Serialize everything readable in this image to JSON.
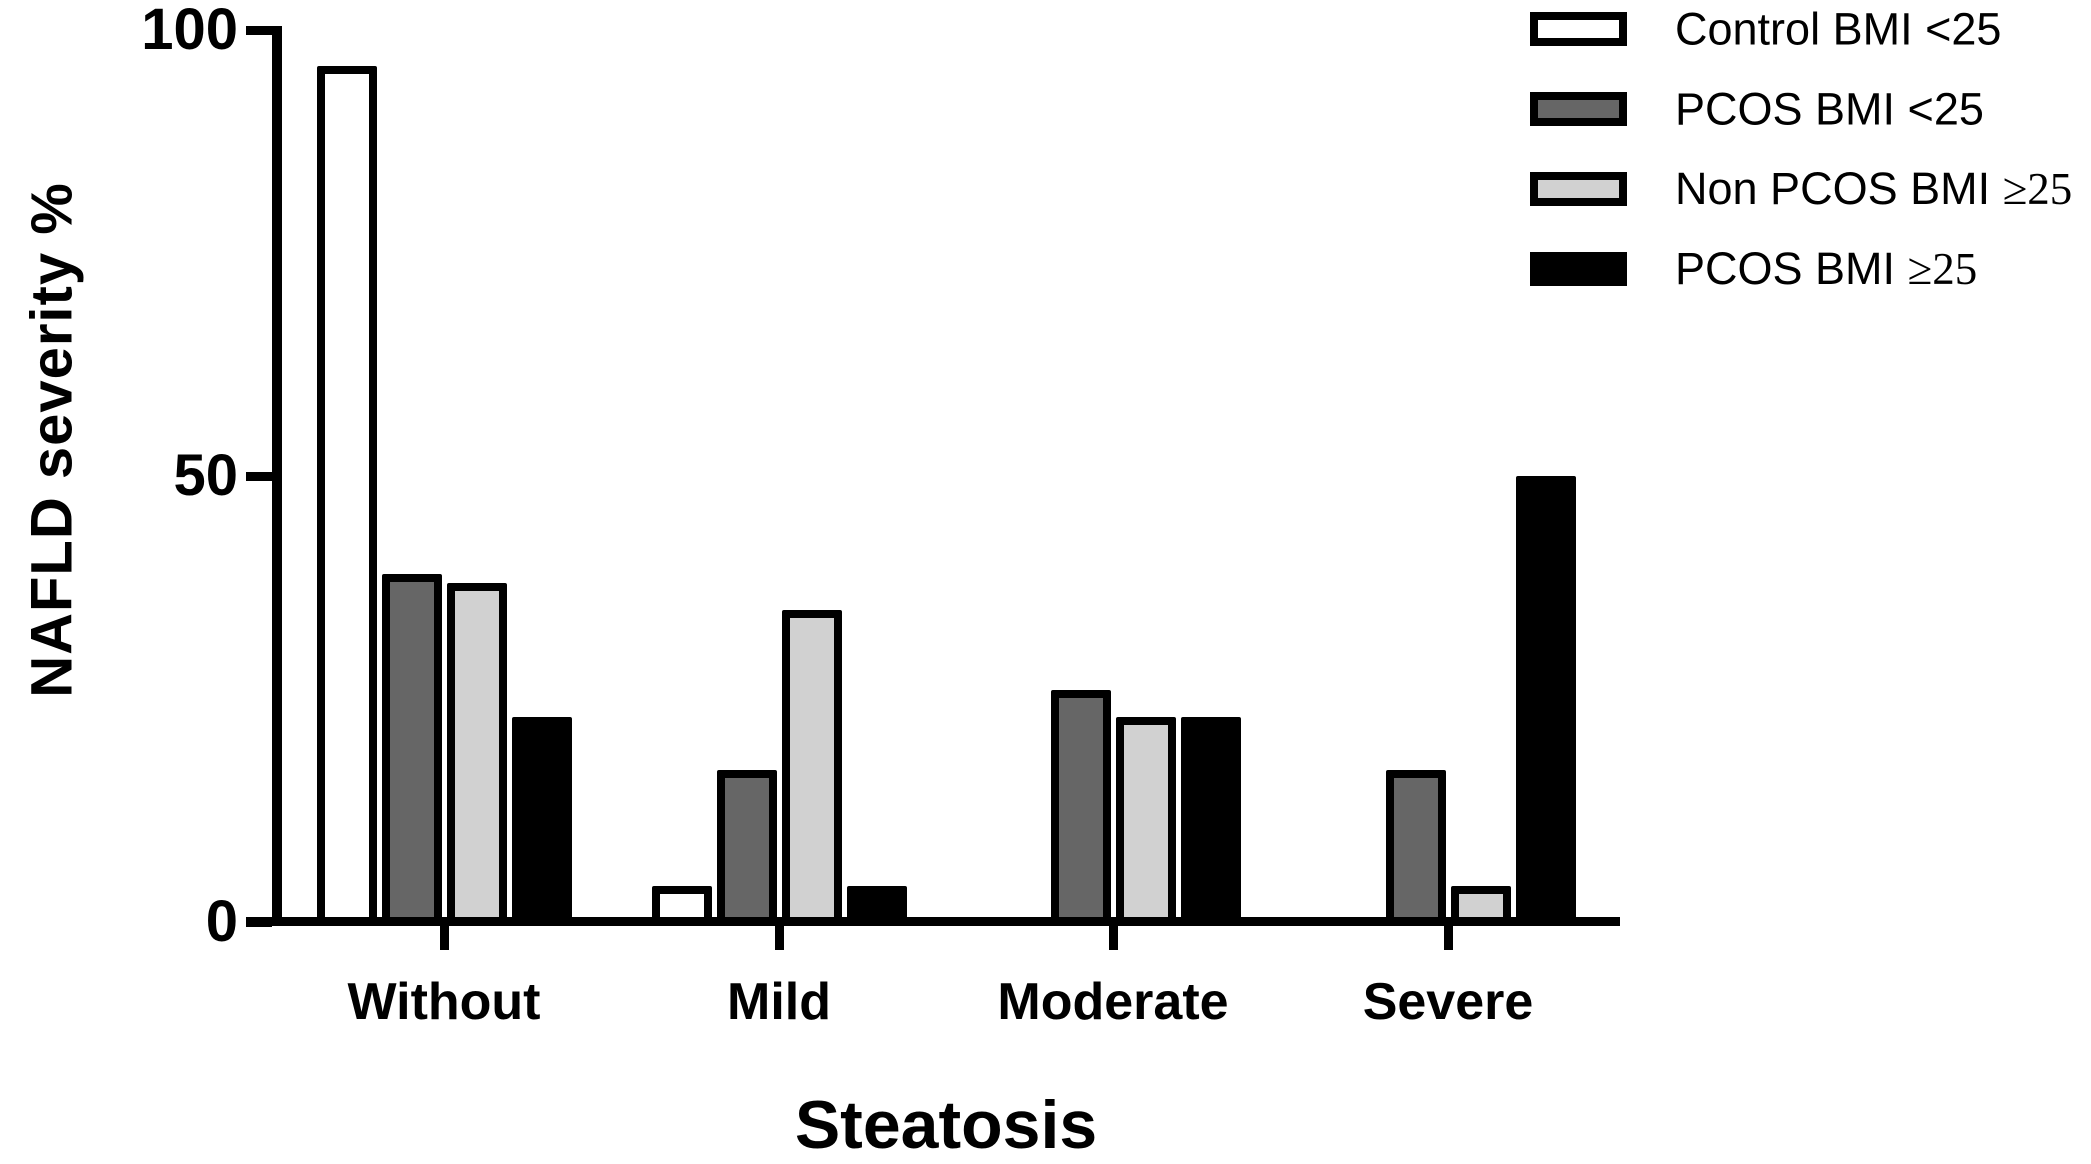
{
  "figure": {
    "background": "#ffffff",
    "text_color": "#000000",
    "bar_border_color": "#000000"
  },
  "chart_data": {
    "type": "bar",
    "title": "",
    "xlabel": "Steatosis",
    "ylabel": "NAFLD severity  %",
    "ylim": [
      0,
      100
    ],
    "yticks": [
      0,
      50,
      100
    ],
    "grid": false,
    "legend_position": "top-right",
    "categories": [
      "Without",
      "Mild",
      "Moderate",
      "Severe"
    ],
    "series": [
      {
        "name": "Control BMI <25",
        "fill": "#ffffff",
        "values": [
          96,
          4,
          0,
          0
        ]
      },
      {
        "name": "PCOS BMI <25",
        "fill": "#666666",
        "values": [
          39,
          17,
          26,
          17
        ]
      },
      {
        "name": "Non PCOS BMI ≥25",
        "fill": "#d1d1d1",
        "values": [
          38,
          35,
          23,
          4
        ]
      },
      {
        "name": "PCOS BMI ≥25",
        "fill": "#000000",
        "values": [
          23,
          4,
          23,
          50
        ]
      }
    ]
  }
}
